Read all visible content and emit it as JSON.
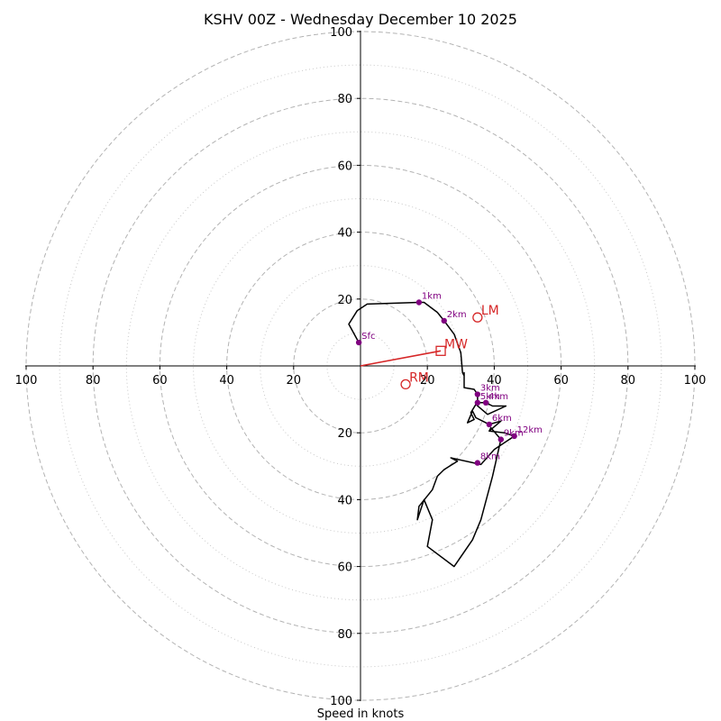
{
  "chart_data": {
    "type": "hodograph",
    "title": "KSHV 00Z - Wednesday December 10 2025",
    "xlabel": "Speed in knots",
    "axis_range": [
      -100,
      100
    ],
    "major_rings": [
      20,
      40,
      60,
      80,
      100
    ],
    "minor_rings": [
      10,
      30,
      50,
      70,
      90
    ],
    "x_tick_values": [
      -100,
      -80,
      -60,
      -40,
      -20,
      20,
      40,
      60,
      80,
      100
    ],
    "x_tick_labels": [
      "100",
      "80",
      "60",
      "40",
      "20",
      "20",
      "40",
      "60",
      "80",
      "100"
    ],
    "y_tick_values": [
      100,
      80,
      60,
      40,
      20,
      -20,
      -40,
      -60,
      -80,
      -100
    ],
    "y_tick_labels": [
      "100",
      "80",
      "60",
      "40",
      "20",
      "20",
      "40",
      "60",
      "80",
      "100"
    ],
    "trace_color": "#000000",
    "height_color": "#800080",
    "motion_color": "#d62728",
    "wind_trace": [
      [
        -0.5,
        7
      ],
      [
        -3.5,
        12.5
      ],
      [
        -1,
        16.5
      ],
      [
        2,
        18.5
      ],
      [
        17.5,
        19
      ],
      [
        19,
        19
      ],
      [
        23,
        16
      ],
      [
        25,
        13.5
      ],
      [
        28,
        9.5
      ],
      [
        30,
        4
      ],
      [
        30.5,
        -2
      ],
      [
        31,
        -3
      ],
      [
        31,
        -2
      ],
      [
        31,
        -6.5
      ],
      [
        34,
        -7
      ],
      [
        35,
        -8.5
      ],
      [
        35,
        -11
      ],
      [
        37.5,
        -11
      ],
      [
        39.5,
        -12
      ],
      [
        43.5,
        -12
      ],
      [
        38,
        -14.5
      ],
      [
        34.5,
        -11.5
      ],
      [
        33,
        -14
      ],
      [
        34,
        -16
      ],
      [
        32,
        -17
      ],
      [
        33.5,
        -13.5
      ],
      [
        34.5,
        -15.5
      ],
      [
        36.5,
        -16.5
      ],
      [
        38.5,
        -17.5
      ],
      [
        42,
        -16.5
      ],
      [
        38.5,
        -19.5
      ],
      [
        43,
        -20
      ],
      [
        46,
        -21
      ],
      [
        41.5,
        -24
      ],
      [
        40,
        -25
      ],
      [
        36,
        -29.5
      ],
      [
        27,
        -27.5
      ],
      [
        29,
        -28.5
      ],
      [
        25,
        -31
      ],
      [
        23,
        -33
      ],
      [
        21.5,
        -37
      ],
      [
        17.5,
        -42
      ],
      [
        17,
        -46
      ],
      [
        19,
        -40
      ],
      [
        21.5,
        -46
      ],
      [
        20,
        -54
      ],
      [
        28,
        -60
      ],
      [
        33.5,
        -52
      ],
      [
        36,
        -46
      ],
      [
        39.5,
        -33
      ],
      [
        42,
        -22
      ],
      [
        39,
        -18.5
      ],
      [
        38.5,
        -19.5
      ]
    ],
    "height_markers": [
      {
        "label": "Sfc",
        "u": -0.5,
        "v": 7
      },
      {
        "label": "1km",
        "u": 17.5,
        "v": 19
      },
      {
        "label": "2km",
        "u": 25,
        "v": 13.5
      },
      {
        "label": "3km",
        "u": 35,
        "v": -8.5
      },
      {
        "label": "5km",
        "u": 35,
        "v": -11
      },
      {
        "label": "4km",
        "u": 37.5,
        "v": -11
      },
      {
        "label": "6km",
        "u": 38.5,
        "v": -17.5
      },
      {
        "label": "12km",
        "u": 46,
        "v": -21
      },
      {
        "label": "9km",
        "u": 42,
        "v": -22
      },
      {
        "label": "8km",
        "u": 35,
        "v": -29
      }
    ],
    "motion_vector": {
      "from": [
        0,
        0
      ],
      "to": [
        24,
        4.5
      ]
    },
    "storm_motions": [
      {
        "label": "LM",
        "marker": "circle",
        "u": 35,
        "v": 14.5
      },
      {
        "label": "MW",
        "marker": "square",
        "u": 24,
        "v": 4.5
      },
      {
        "label": "RM",
        "marker": "circle",
        "u": 13.5,
        "v": -5.5
      }
    ]
  }
}
